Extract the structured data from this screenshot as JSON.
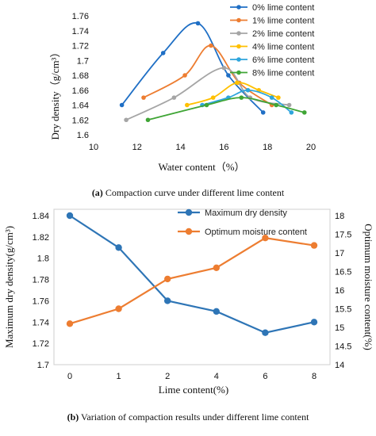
{
  "chart_data": [
    {
      "type": "line",
      "xlabel": "Water content（%）",
      "ylabel": "Dry density（g/cm³）",
      "xlim": [
        10,
        20
      ],
      "ylim": [
        1.6,
        1.76
      ],
      "xticks": [
        "10",
        "12",
        "14",
        "16",
        "18",
        "20"
      ],
      "yticks": [
        "1.6",
        "1.62",
        "1.64",
        "1.66",
        "1.68",
        "1.7",
        "1.72",
        "1.74",
        "1.76"
      ],
      "grid": false,
      "legend": "top-right",
      "caption_label": "(a)",
      "caption_text": " Compaction curve under different lime content",
      "series": [
        {
          "name": "0% lime content",
          "color": "#1f6fc5",
          "points": [
            [
              11.3,
              1.64
            ],
            [
              13.2,
              1.71
            ],
            [
              14.8,
              1.75
            ],
            [
              16.2,
              1.68
            ],
            [
              17.8,
              1.63
            ]
          ]
        },
        {
          "name": "1% lime content",
          "color": "#ed7d31",
          "points": [
            [
              12.3,
              1.65
            ],
            [
              14.2,
              1.68
            ],
            [
              15.4,
              1.72
            ],
            [
              16.7,
              1.67
            ],
            [
              18.2,
              1.64
            ]
          ]
        },
        {
          "name": "2% lime content",
          "color": "#a5a5a5",
          "points": [
            [
              11.5,
              1.62
            ],
            [
              13.7,
              1.65
            ],
            [
              16.0,
              1.69
            ],
            [
              17.2,
              1.65
            ],
            [
              19.0,
              1.64
            ]
          ]
        },
        {
          "name": "4% lime content",
          "color": "#ffc000",
          "points": [
            [
              14.3,
              1.64
            ],
            [
              15.5,
              1.65
            ],
            [
              16.6,
              1.67
            ],
            [
              17.6,
              1.66
            ],
            [
              18.5,
              1.65
            ]
          ]
        },
        {
          "name": "6% lime content",
          "color": "#2ea5dc",
          "points": [
            [
              15.0,
              1.64
            ],
            [
              16.2,
              1.65
            ],
            [
              17.1,
              1.66
            ],
            [
              18.2,
              1.65
            ],
            [
              19.1,
              1.63
            ]
          ]
        },
        {
          "name": "8% lime content",
          "color": "#3fa535",
          "points": [
            [
              12.5,
              1.62
            ],
            [
              15.2,
              1.64
            ],
            [
              16.8,
              1.65
            ],
            [
              18.4,
              1.64
            ],
            [
              19.7,
              1.63
            ]
          ]
        }
      ]
    },
    {
      "type": "line",
      "categories": [
        "0",
        "1",
        "2",
        "4",
        "6",
        "8"
      ],
      "xlabel": "Lime content(%)",
      "ylabel": "Maximum dry density(g/cm³)",
      "y2label": "Optimum moisture content(%)",
      "ylim": [
        1.7,
        1.84
      ],
      "y2lim": [
        14,
        18
      ],
      "yticks": [
        "1.7",
        "1.72",
        "1.74",
        "1.76",
        "1.78",
        "1.8",
        "1.82",
        "1.84"
      ],
      "y2ticks": [
        "14",
        "14.5",
        "15",
        "15.5",
        "16",
        "16.5",
        "17",
        "17.5",
        "18"
      ],
      "grid": false,
      "legend": "top-center",
      "caption_label": "(b)",
      "caption_text": " Variation of compaction results under different lime content",
      "series": [
        {
          "name": "Maximum dry density",
          "axis": "left",
          "color": "#2e75b6",
          "values": [
            1.84,
            1.81,
            1.76,
            1.75,
            1.73,
            1.74
          ]
        },
        {
          "name": "Optimum moisture content",
          "axis": "right",
          "color": "#ed7d31",
          "values": [
            15.1,
            15.5,
            16.3,
            16.6,
            17.4,
            17.2
          ]
        }
      ]
    }
  ]
}
